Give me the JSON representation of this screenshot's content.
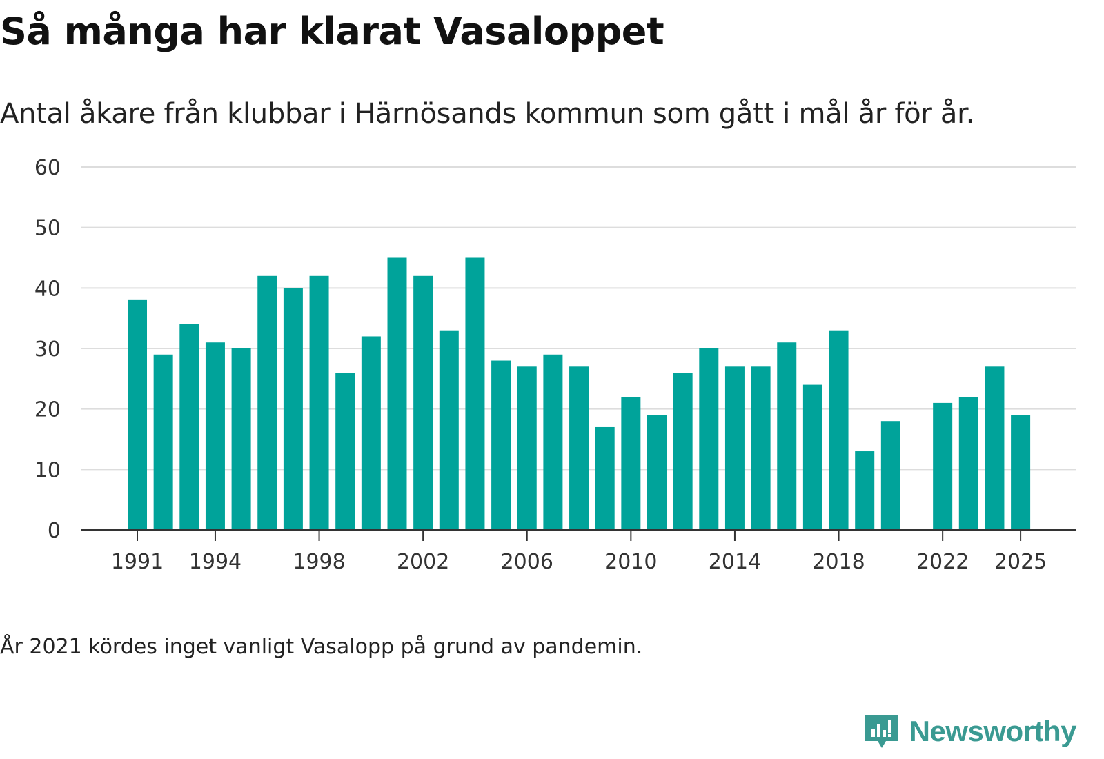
{
  "title": "Så många har klarat Vasaloppet",
  "subtitle": "Antal åkare från klubbar i Härnösands kommun som gått i mål år för år.",
  "footnote": "År 2021 kördes inget vanligt Vasalopp på grund av pandemin.",
  "brand": {
    "name": "Newsworthy",
    "icon": "newsworthy-logo-icon",
    "color": "#3a9a92"
  },
  "chart_data": {
    "type": "bar",
    "title": "Så många har klarat Vasaloppet",
    "xlabel": "",
    "ylabel": "",
    "ylim": [
      0,
      60
    ],
    "yticks": [
      0,
      10,
      20,
      30,
      40,
      50,
      60
    ],
    "xtick_labels": [
      "1991",
      "1994",
      "1998",
      "2002",
      "2006",
      "2010",
      "2014",
      "2018",
      "2022",
      "2025"
    ],
    "grid": true,
    "bar_color": "#00a39a",
    "categories": [
      1991,
      1992,
      1993,
      1994,
      1995,
      1996,
      1997,
      1998,
      1999,
      2000,
      2001,
      2002,
      2003,
      2004,
      2005,
      2006,
      2007,
      2008,
      2009,
      2010,
      2011,
      2012,
      2013,
      2014,
      2015,
      2016,
      2017,
      2018,
      2019,
      2020,
      2021,
      2022,
      2023,
      2024,
      2025
    ],
    "values": [
      38,
      29,
      34,
      31,
      30,
      42,
      40,
      42,
      26,
      32,
      45,
      42,
      33,
      45,
      28,
      27,
      29,
      27,
      17,
      22,
      19,
      26,
      30,
      27,
      27,
      31,
      24,
      33,
      13,
      18,
      null,
      21,
      22,
      27,
      19
    ]
  }
}
